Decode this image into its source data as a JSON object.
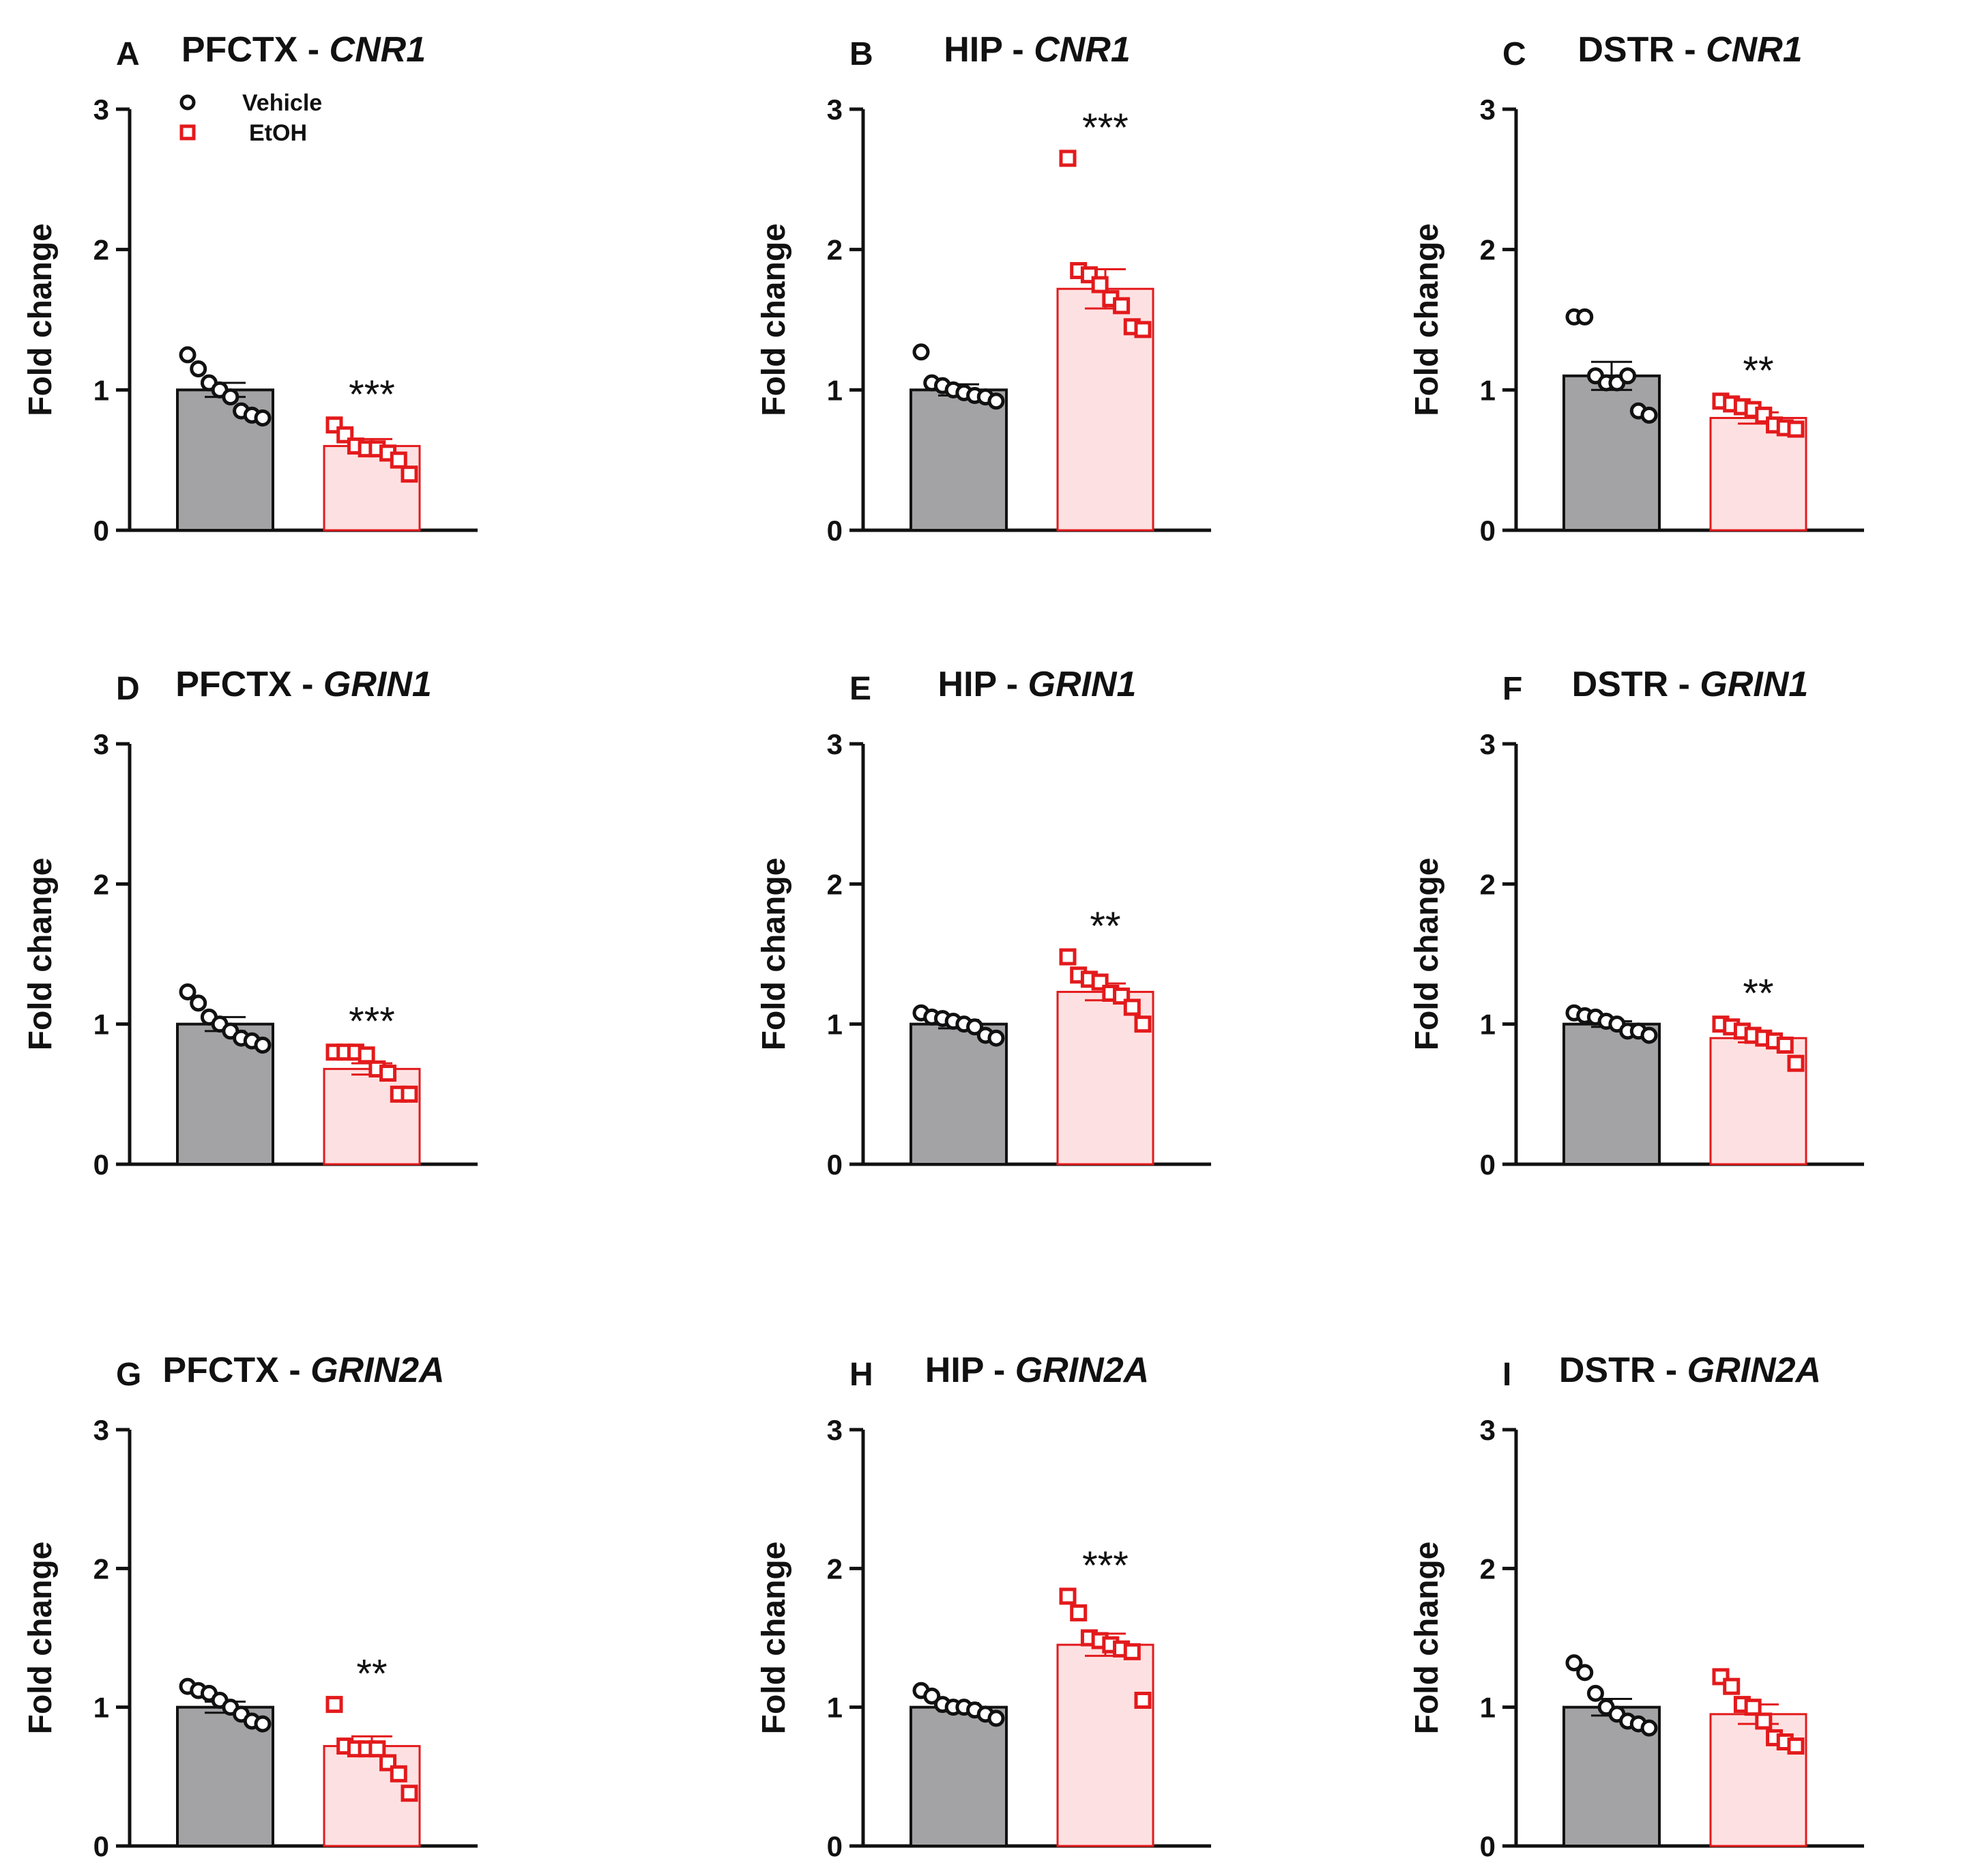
{
  "colors": {
    "vehicle_bar": "#a3a3a6",
    "vehicle_marker": "#111111",
    "etoh_bar": "#fde1e2",
    "etoh_marker": "#e31a1c",
    "axis": "#111111"
  },
  "legend": {
    "items": [
      {
        "label": "Vehicle",
        "marker": "circle-icon"
      },
      {
        "label": "EtOH",
        "marker": "square-icon"
      }
    ]
  },
  "chart_data": [
    {
      "id": "A",
      "type": "bar",
      "title_region": "PFCTX - ",
      "title_gene": "CNR1",
      "ylabel": "Fold change",
      "ylim": [
        0,
        3
      ],
      "yticks": [
        0,
        1,
        2,
        3
      ],
      "categories": [
        "Vehicle",
        "EtOH"
      ],
      "series": [
        {
          "name": "Vehicle",
          "mean": 1.0,
          "sem": 0.05,
          "points": [
            1.25,
            1.15,
            1.05,
            1.0,
            0.95,
            0.85,
            0.82,
            0.8
          ]
        },
        {
          "name": "EtOH",
          "mean": 0.6,
          "sem": 0.05,
          "points": [
            0.75,
            0.68,
            0.6,
            0.58,
            0.58,
            0.55,
            0.5,
            0.4
          ],
          "significance": "***"
        }
      ]
    },
    {
      "id": "B",
      "type": "bar",
      "title_region": "HIP - ",
      "title_gene": "CNR1",
      "ylabel": "Fold change",
      "ylim": [
        0,
        3
      ],
      "yticks": [
        0,
        1,
        2,
        3
      ],
      "categories": [
        "Vehicle",
        "EtOH"
      ],
      "series": [
        {
          "name": "Vehicle",
          "mean": 1.0,
          "sem": 0.04,
          "points": [
            1.27,
            1.05,
            1.03,
            1.0,
            0.98,
            0.96,
            0.95,
            0.92
          ]
        },
        {
          "name": "EtOH",
          "mean": 1.72,
          "sem": 0.14,
          "points": [
            2.65,
            1.85,
            1.82,
            1.75,
            1.65,
            1.6,
            1.45,
            1.43
          ],
          "significance": "***"
        }
      ]
    },
    {
      "id": "C",
      "type": "bar",
      "title_region": "DSTR - ",
      "title_gene": "CNR1",
      "ylabel": "Fold change",
      "ylim": [
        0,
        3
      ],
      "yticks": [
        0,
        1,
        2,
        3
      ],
      "categories": [
        "Vehicle",
        "EtOH"
      ],
      "series": [
        {
          "name": "Vehicle",
          "mean": 1.1,
          "sem": 0.1,
          "points": [
            1.52,
            1.52,
            1.1,
            1.05,
            1.05,
            1.1,
            0.85,
            0.82
          ]
        },
        {
          "name": "EtOH",
          "mean": 0.8,
          "sem": 0.04,
          "points": [
            0.92,
            0.9,
            0.88,
            0.86,
            0.82,
            0.75,
            0.73,
            0.72
          ],
          "significance": "**"
        }
      ]
    },
    {
      "id": "D",
      "type": "bar",
      "title_region": "PFCTX - ",
      "title_gene": "GRIN1",
      "ylabel": "Fold change",
      "ylim": [
        0,
        3
      ],
      "yticks": [
        0,
        1,
        2,
        3
      ],
      "categories": [
        "Vehicle",
        "EtOH"
      ],
      "series": [
        {
          "name": "Vehicle",
          "mean": 1.0,
          "sem": 0.05,
          "points": [
            1.23,
            1.15,
            1.05,
            1.0,
            0.95,
            0.9,
            0.88,
            0.85
          ]
        },
        {
          "name": "EtOH",
          "mean": 0.68,
          "sem": 0.04,
          "points": [
            0.8,
            0.8,
            0.8,
            0.78,
            0.68,
            0.65,
            0.5,
            0.5
          ],
          "significance": "***"
        }
      ]
    },
    {
      "id": "E",
      "type": "bar",
      "title_region": "HIP - ",
      "title_gene": "GRIN1",
      "ylabel": "Fold change",
      "ylim": [
        0,
        3
      ],
      "yticks": [
        0,
        1,
        2,
        3
      ],
      "categories": [
        "Vehicle",
        "EtOH"
      ],
      "series": [
        {
          "name": "Vehicle",
          "mean": 1.0,
          "sem": 0.03,
          "points": [
            1.08,
            1.05,
            1.04,
            1.02,
            1.0,
            0.98,
            0.92,
            0.9
          ]
        },
        {
          "name": "EtOH",
          "mean": 1.23,
          "sem": 0.06,
          "points": [
            1.48,
            1.35,
            1.32,
            1.3,
            1.22,
            1.2,
            1.12,
            1.0
          ],
          "significance": "**"
        }
      ]
    },
    {
      "id": "F",
      "type": "bar",
      "title_region": "DSTR - ",
      "title_gene": "GRIN1",
      "ylabel": "Fold change",
      "ylim": [
        0,
        3
      ],
      "yticks": [
        0,
        1,
        2,
        3
      ],
      "categories": [
        "Vehicle",
        "EtOH"
      ],
      "series": [
        {
          "name": "Vehicle",
          "mean": 1.0,
          "sem": 0.02,
          "points": [
            1.08,
            1.06,
            1.05,
            1.02,
            1.0,
            0.95,
            0.95,
            0.92
          ]
        },
        {
          "name": "EtOH",
          "mean": 0.9,
          "sem": 0.03,
          "points": [
            1.0,
            0.98,
            0.95,
            0.92,
            0.9,
            0.88,
            0.85,
            0.72
          ],
          "significance": "**"
        }
      ]
    },
    {
      "id": "G",
      "type": "bar",
      "title_region": "PFCTX - ",
      "title_gene": "GRIN2A",
      "ylabel": "Fold change",
      "ylim": [
        0,
        3
      ],
      "yticks": [
        0,
        1,
        2,
        3
      ],
      "categories": [
        "Vehicle",
        "EtOH"
      ],
      "series": [
        {
          "name": "Vehicle",
          "mean": 1.0,
          "sem": 0.04,
          "points": [
            1.15,
            1.12,
            1.1,
            1.05,
            1.0,
            0.95,
            0.9,
            0.88
          ]
        },
        {
          "name": "EtOH",
          "mean": 0.72,
          "sem": 0.07,
          "points": [
            1.02,
            0.72,
            0.7,
            0.7,
            0.7,
            0.6,
            0.52,
            0.38
          ],
          "significance": "**"
        }
      ]
    },
    {
      "id": "H",
      "type": "bar",
      "title_region": "HIP - ",
      "title_gene": "GRIN2A",
      "ylabel": "Fold change",
      "ylim": [
        0,
        3
      ],
      "yticks": [
        0,
        1,
        2,
        3
      ],
      "categories": [
        "Vehicle",
        "EtOH"
      ],
      "series": [
        {
          "name": "Vehicle",
          "mean": 1.0,
          "sem": 0.03,
          "points": [
            1.12,
            1.08,
            1.02,
            1.0,
            1.0,
            0.98,
            0.95,
            0.92
          ]
        },
        {
          "name": "EtOH",
          "mean": 1.45,
          "sem": 0.08,
          "points": [
            1.8,
            1.68,
            1.5,
            1.48,
            1.45,
            1.42,
            1.4,
            1.05
          ],
          "significance": "***"
        }
      ]
    },
    {
      "id": "I",
      "type": "bar",
      "title_region": "DSTR - ",
      "title_gene": "GRIN2A",
      "ylabel": "Fold change",
      "ylim": [
        0,
        3
      ],
      "yticks": [
        0,
        1,
        2,
        3
      ],
      "categories": [
        "Vehicle",
        "EtOH"
      ],
      "series": [
        {
          "name": "Vehicle",
          "mean": 1.0,
          "sem": 0.06,
          "points": [
            1.32,
            1.25,
            1.1,
            1.0,
            0.95,
            0.9,
            0.88,
            0.85
          ]
        },
        {
          "name": "EtOH",
          "mean": 0.95,
          "sem": 0.07,
          "points": [
            1.22,
            1.15,
            1.02,
            1.0,
            0.9,
            0.78,
            0.75,
            0.72
          ]
        }
      ]
    }
  ]
}
